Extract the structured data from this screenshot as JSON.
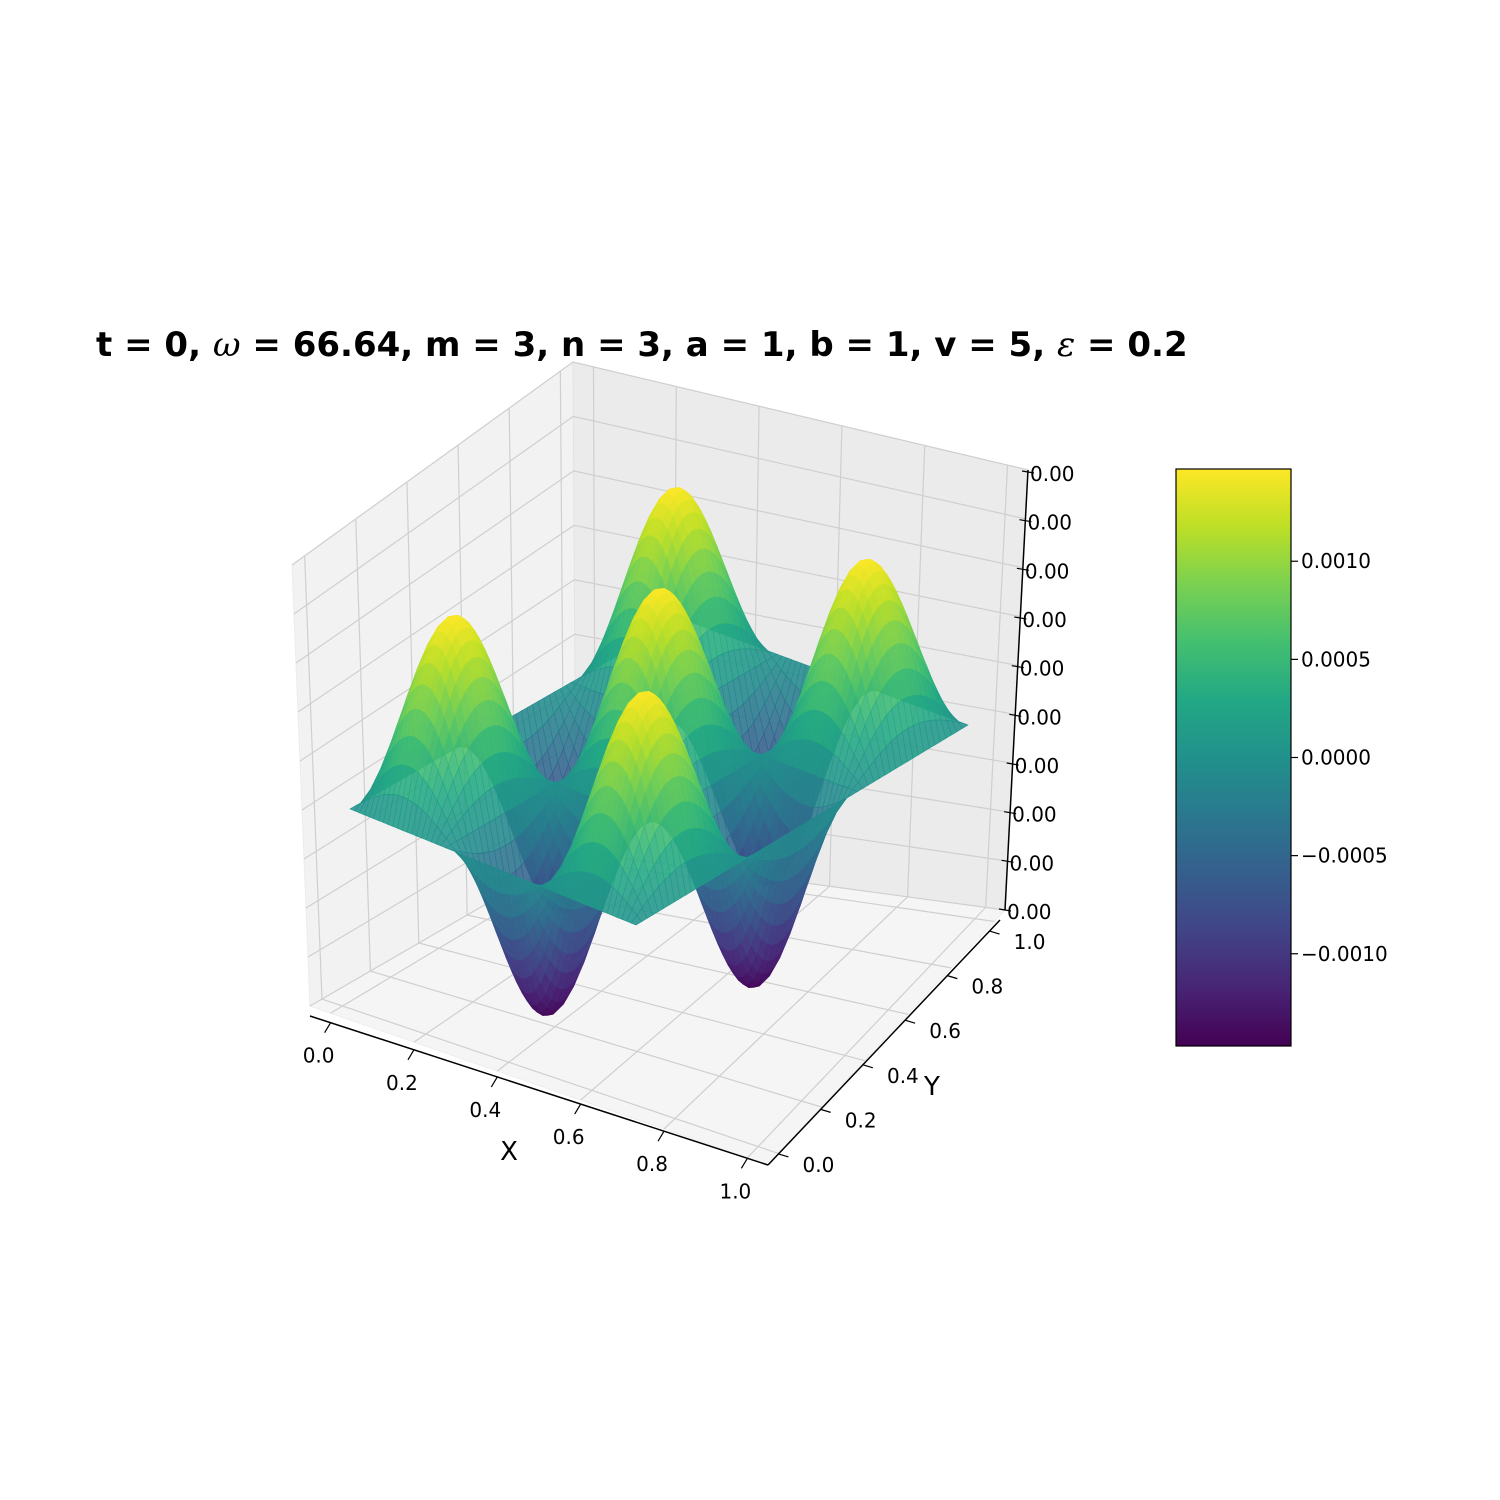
{
  "title": {
    "part1": "t = 0, ",
    "omega_symbol": "ω",
    "part2": " = 66.64, m = 3, n = 3, a = 1, b = 1, v = 5, ",
    "epsilon_symbol": "ε",
    "part3": " = 0.2"
  },
  "chart_data": {
    "type": "surface",
    "function": "z = A*sin(m*pi*x)*sin(n*pi*y)",
    "amplitude": 0.00147,
    "m": 3,
    "n": 3,
    "xlabel": "X",
    "ylabel": "Y",
    "xlim": [
      0,
      1
    ],
    "ylim": [
      0,
      1
    ],
    "zlim": [
      -0.00147,
      0.00147
    ],
    "x_ticks": [
      "0.0",
      "0.2",
      "0.4",
      "0.6",
      "0.8",
      "1.0"
    ],
    "y_ticks": [
      "0.0",
      "0.2",
      "0.4",
      "0.6",
      "0.8",
      "1.0"
    ],
    "z_ticks": [
      "0.00",
      "0.00",
      "0.00",
      "0.00",
      "0.00",
      "0.00",
      "0.00",
      "0.00",
      "0.00",
      "0.00"
    ],
    "grid": true,
    "colormap": "viridis",
    "colorbar": {
      "ticks": [
        "0.0010",
        "0.0005",
        "0.0000",
        "−0.0005",
        "−0.0010"
      ],
      "tick_values": [
        0.001,
        0.0005,
        0.0,
        -0.0005,
        -0.001
      ],
      "min": -0.00147,
      "max": 0.00147
    }
  }
}
